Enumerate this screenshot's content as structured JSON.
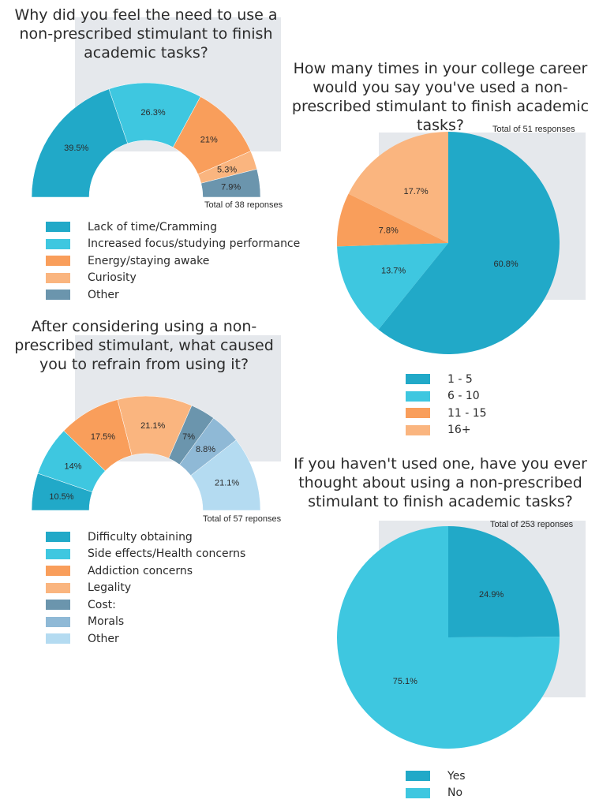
{
  "colors": {
    "dark_teal": "#21a9c8",
    "light_teal": "#3ec7e0",
    "orange": "#f99e5b",
    "peach": "#fab57f",
    "slate": "#6b95ad",
    "steel": "#8fb9d6",
    "pale_blue": "#b4dbf1",
    "panel_bg": "#e5e8ec"
  },
  "chart_data": [
    {
      "type": "pie",
      "variant": "half-donut",
      "title": "Why did you feel the need to use a non-prescribed stimulant to finish academic tasks?",
      "total_label": "Total of 38 reponses",
      "series": [
        {
          "name": "Lack of time/Cramming",
          "value": 39.5,
          "label": "39.5%",
          "color": "#21a9c8"
        },
        {
          "name": "Increased focus/studying performance",
          "value": 26.3,
          "label": "26.3%",
          "color": "#3ec7e0"
        },
        {
          "name": "Energy/staying awake",
          "value": 21,
          "label": "21%",
          "color": "#f99e5b"
        },
        {
          "name": "Curiosity",
          "value": 5.3,
          "label": "5.3%",
          "color": "#fab57f"
        },
        {
          "name": "Other",
          "value": 7.9,
          "label": "7.9%",
          "color": "#6b95ad"
        }
      ]
    },
    {
      "type": "pie",
      "title": "How many times in your college career would you say you've used a non-prescribed stimulant to finish academic tasks?",
      "total_label": "Total of 51 responses",
      "series": [
        {
          "name": "1 - 5",
          "value": 60.8,
          "label": "60.8%",
          "color": "#21a9c8"
        },
        {
          "name": "6 - 10",
          "value": 13.7,
          "label": "13.7%",
          "color": "#3ec7e0"
        },
        {
          "name": "11 - 15",
          "value": 7.8,
          "label": "7.8%",
          "color": "#f99e5b"
        },
        {
          "name": "16+",
          "value": 17.7,
          "label": "17.7%",
          "color": "#fab57f"
        }
      ]
    },
    {
      "type": "pie",
      "variant": "half-donut",
      "title": "After considering using a non-prescribed stimulant, what caused you to refrain from using it?",
      "total_label": "Total of 57 reponses",
      "series": [
        {
          "name": "Difficulty obtaining",
          "value": 10.5,
          "label": "10.5%",
          "color": "#21a9c8"
        },
        {
          "name": "Side effects/Health concerns",
          "value": 14,
          "label": "14%",
          "color": "#3ec7e0"
        },
        {
          "name": "Addiction concerns",
          "value": 17.5,
          "label": "17.5%",
          "color": "#f99e5b"
        },
        {
          "name": "Legality",
          "value": 21.1,
          "label": "21.1%",
          "color": "#fab57f"
        },
        {
          "name": "Cost:",
          "value": 7,
          "label": "7%",
          "color": "#6b95ad"
        },
        {
          "name": "Morals",
          "value": 8.8,
          "label": "8.8%",
          "color": "#8fb9d6"
        },
        {
          "name": "Other",
          "value": 21.1,
          "label": "21.1%",
          "color": "#b4dbf1"
        }
      ]
    },
    {
      "type": "pie",
      "title": "If you haven't used one, have you ever thought about using a non-prescribed stimulant to finish academic tasks?",
      "total_label": "Total of 253 reponses",
      "series": [
        {
          "name": "Yes",
          "value": 24.9,
          "label": "24.9%",
          "color": "#21a9c8"
        },
        {
          "name": "No",
          "value": 75.1,
          "label": "75.1%",
          "color": "#3ec7e0"
        }
      ]
    }
  ]
}
